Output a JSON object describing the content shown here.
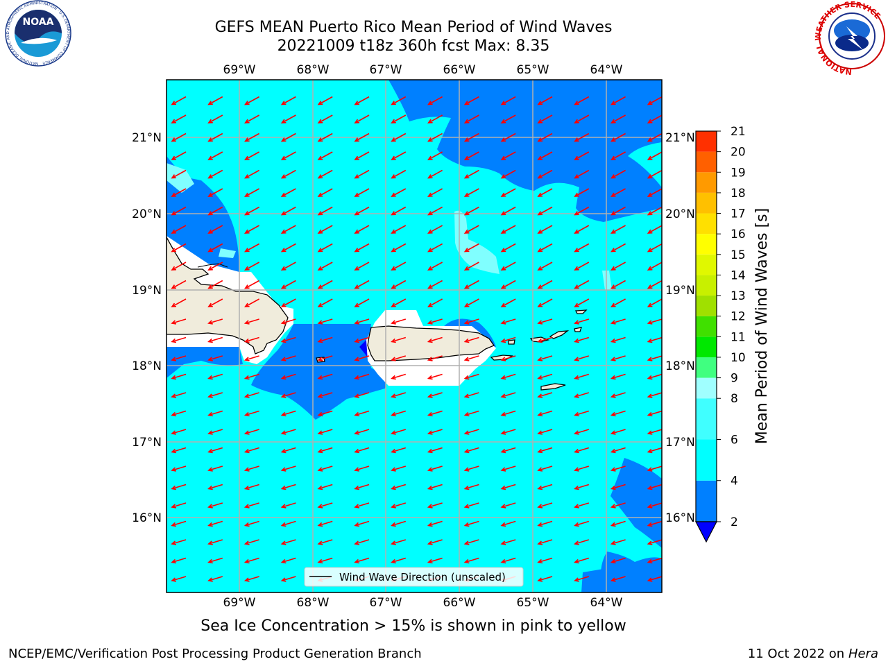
{
  "header": {
    "title_line1": "GEFS MEAN Puerto Rico Mean Period of Wind Waves",
    "title_line2": "20221009 t18z 360h fcst   Max: 8.35"
  },
  "logos": {
    "noaa_text": "NOAA",
    "noaa_ring_text": "NATIONAL OCEANIC AND ATMOSPHERIC ADMINISTRATION · U.S. DEPARTMENT OF COMMERCE",
    "nws_ring_text": "NATIONAL WEATHER SERVICE"
  },
  "map": {
    "lon_labels": [
      "69°W",
      "68°W",
      "67°W",
      "66°W",
      "65°W",
      "64°W"
    ],
    "lat_labels": [
      "21°N",
      "20°N",
      "19°N",
      "18°N",
      "17°N",
      "16°N"
    ],
    "legend_label": "Wind Wave Direction (unscaled)",
    "colors": {
      "ocean_light": "#00ffff",
      "ocean_blue": "#0080ff",
      "land": "#f0ecdc",
      "grid": "#b0b0b0",
      "arrows": "#ff0000",
      "pale": "#80ffff"
    }
  },
  "colorbar": {
    "label": "Mean Period of Wind Waves [s]",
    "ticks": [
      "2",
      "4",
      "6",
      "8",
      "9",
      "10",
      "11",
      "12",
      "13",
      "14",
      "15",
      "16",
      "17",
      "18",
      "19",
      "20",
      "21"
    ],
    "colors": [
      "#0080ff",
      "#00ffff",
      "#40ffff",
      "#a0ffff",
      "#40ff80",
      "#00e800",
      "#40e000",
      "#a0e000",
      "#c8f000",
      "#e0f800",
      "#ffff00",
      "#ffe000",
      "#ffc000",
      "#ff9a00",
      "#ff6000",
      "#ff3000",
      "#ff0000"
    ],
    "extend_color": "#0000ff"
  },
  "footer": {
    "note": "Sea Ice Concentration > 15% is shown in pink to yellow",
    "credit": "NCEP/EMC/Verification Post Processing Product Generation Branch",
    "date_prefix": "11 Oct 2022 on",
    "date_host": "Hera"
  }
}
